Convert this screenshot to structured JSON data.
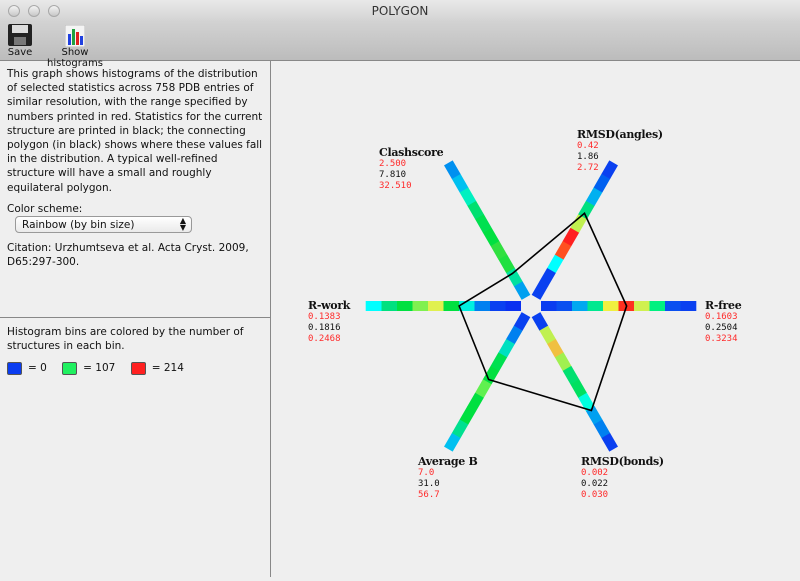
{
  "window": {
    "title": "POLYGON"
  },
  "toolbar": {
    "save_label": "Save",
    "histograms_label": "Show histograms"
  },
  "description": "This graph shows histograms of the distribution of selected statistics across 758 PDB entries of similar resolution, with the range specified by numbers printed in red.  Statistics for the current structure are printed in black; the connecting polygon (in black) shows where these values fall in the distribution. A typical well-refined structure will have a small and roughly equilateral polygon.",
  "color_scheme": {
    "label": "Color scheme:",
    "value": "Rainbow (by bin size)"
  },
  "citation": "Citation: Urzhumtseva et al. Acta Cryst. 2009, D65:297-300.",
  "legend": {
    "text": "Histogram bins are colored by the number of structures in each bin.",
    "items": [
      {
        "label": "= 0",
        "color": "#0a3cf0"
      },
      {
        "label": "= 107",
        "color": "#20f060"
      },
      {
        "label": "= 214",
        "color": "#ff2020"
      }
    ]
  },
  "chart_data": {
    "type": "radar-histogram",
    "axes": [
      {
        "name": "R-free",
        "min": "0.1603",
        "current": "0.2504",
        "max": "0.3234",
        "bins": [
          "#0a3cf0",
          "#0a50f0",
          "#00a8f0",
          "#00e890",
          "#f0f040",
          "#ff3020",
          "#d0f050",
          "#00f080",
          "#0a50f0",
          "#0a40f0"
        ]
      },
      {
        "name": "RMSD(angles)",
        "min": "0.42",
        "current": "1.86",
        "max": "2.72",
        "bins": [
          "#0a40f0",
          "#0a40f0",
          "#00ffff",
          "#ff5020",
          "#ff2020",
          "#c0f050",
          "#00e080",
          "#00b0f0",
          "#0060f0",
          "#0a40f0"
        ]
      },
      {
        "name": "Clashscore",
        "min": "2.500",
        "current": "7.810",
        "max": "32.510",
        "bins": [
          "#00a0f0",
          "#00e0a0",
          "#20e040",
          "#30e040",
          "#00e040",
          "#00e050",
          "#00e070",
          "#00f0c0",
          "#00c0f0",
          "#0090f0"
        ]
      },
      {
        "name": "R-work",
        "min": "0.1383",
        "current": "0.1816",
        "max": "0.2468",
        "bins": [
          "#0a30f0",
          "#0a40f0",
          "#0080f0",
          "#00f0e0",
          "#00e040",
          "#e0f050",
          "#80f050",
          "#00e040",
          "#00e080",
          "#00ffff"
        ]
      },
      {
        "name": "Average B",
        "min": "7.0",
        "current": "31.0",
        "max": "56.7",
        "bins": [
          "#0a40f0",
          "#0080f0",
          "#00e0c0",
          "#00e050",
          "#00e040",
          "#60f050",
          "#00e040",
          "#00e040",
          "#00e090",
          "#00c0f0"
        ]
      },
      {
        "name": "RMSD(bonds)",
        "min": "0.002",
        "current": "0.022",
        "max": "0.030",
        "bins": [
          "#0a40f0",
          "#c0f050",
          "#f0c040",
          "#a0f050",
          "#00e070",
          "#00e060",
          "#00ffe0",
          "#00a0f0",
          "#0080f0",
          "#0a40f0"
        ]
      }
    ]
  }
}
